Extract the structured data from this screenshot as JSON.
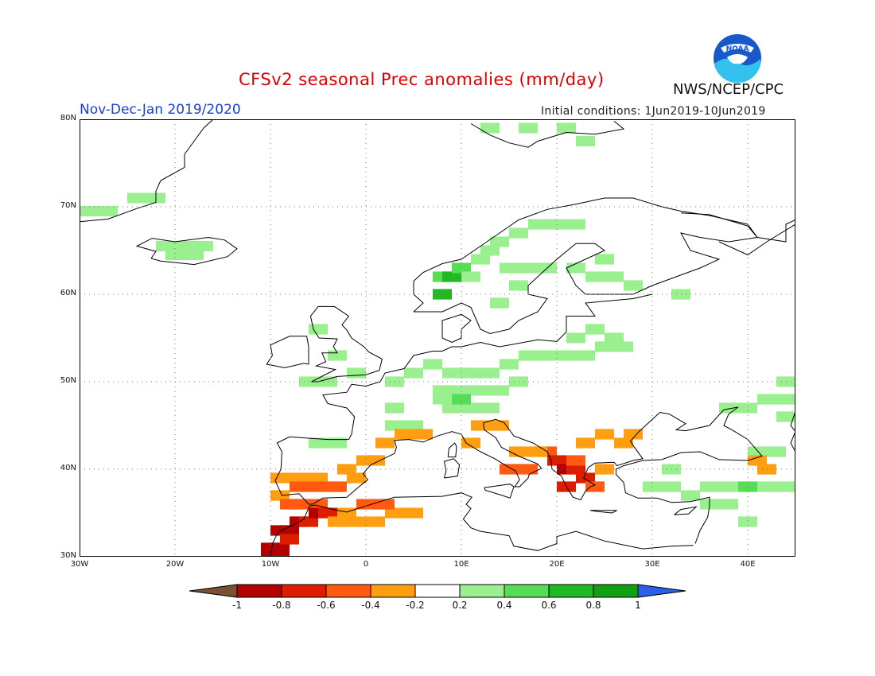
{
  "header": {
    "title": "CFSv2 seasonal Prec anomalies (mm/day)",
    "season": "Nov-Dec-Jan 2019/2020",
    "initial_conditions": "Initial conditions: 1Jun2019-10Jun2019",
    "agency": "NWS/NCEP/CPC",
    "logo_text": "NOAA"
  },
  "map": {
    "region": "Europe",
    "lon_range": [
      -30,
      45
    ],
    "lat_range": [
      30,
      80
    ],
    "lat_labels": [
      "80N",
      "70N",
      "60N",
      "50N",
      "40N",
      "30N"
    ],
    "lon_labels": [
      "30W",
      "20W",
      "10W",
      "0",
      "10E",
      "20E",
      "30E",
      "40E"
    ],
    "grid": "dotted"
  },
  "colorbar": {
    "labels": [
      "-1",
      "-0.8",
      "-0.6",
      "-0.4",
      "-0.2",
      "0.2",
      "0.4",
      "0.6",
      "0.8",
      "1"
    ],
    "colors": [
      "#7a4f32",
      "#b30000",
      "#dd1c00",
      "#ff5a10",
      "#ff9e10",
      "#ffffff",
      "#9aef8e",
      "#55de55",
      "#22b822",
      "#11a011",
      "#2a5fe6"
    ]
  }
}
